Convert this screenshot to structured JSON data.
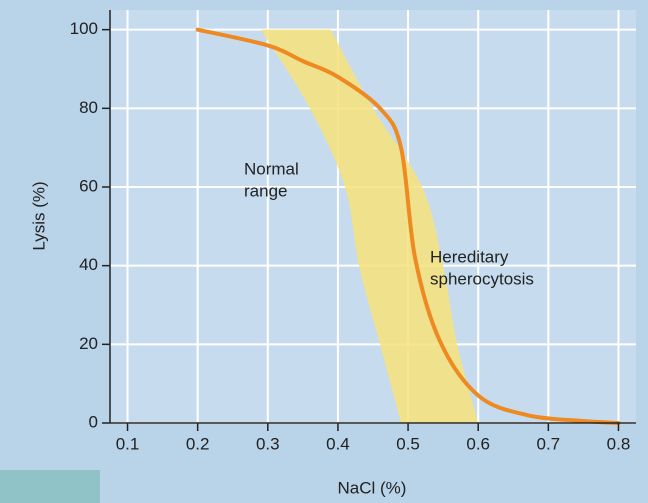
{
  "chart_data": {
    "type": "line",
    "xlabel": "NaCl (%)",
    "ylabel": "Lysis (%)",
    "xlim": [
      0.075,
      0.825
    ],
    "ylim": [
      0,
      105
    ],
    "xticks": [
      0.1,
      0.2,
      0.3,
      0.4,
      0.5,
      0.6,
      0.7,
      0.8
    ],
    "yticks": [
      0,
      20,
      40,
      60,
      80,
      100
    ],
    "grid": true,
    "band": {
      "color": "#f7e27a",
      "y": [
        100,
        80,
        60,
        40,
        20,
        0
      ],
      "x_low": [
        0.29,
        0.36,
        0.41,
        0.43,
        0.46,
        0.49
      ],
      "x_high": [
        0.39,
        0.45,
        0.52,
        0.55,
        0.57,
        0.6
      ]
    },
    "series": [
      {
        "color": "#ee8a22",
        "x": [
          0.2,
          0.3,
          0.35,
          0.4,
          0.46,
          0.49,
          0.51,
          0.545,
          0.6,
          0.67,
          0.75,
          0.8
        ],
        "values": [
          100,
          96,
          92,
          88,
          80,
          70,
          42,
          21,
          7,
          2,
          0.5,
          0
        ]
      }
    ],
    "annotations": [
      {
        "lines": [
          "Normal",
          "range"
        ]
      },
      {
        "lines": [
          "Hereditary",
          "spherocytosis"
        ]
      }
    ]
  }
}
